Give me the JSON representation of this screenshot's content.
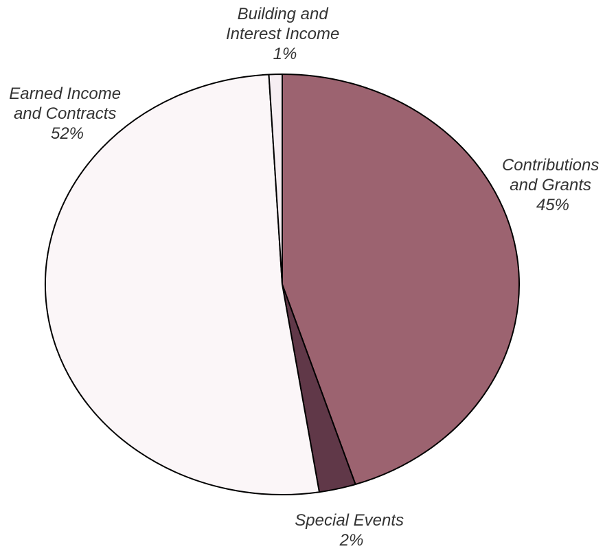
{
  "chart_data": {
    "type": "pie",
    "title": "",
    "start_angle": "12 o'clock",
    "direction": "clockwise",
    "slices": [
      {
        "label_lines": [
          "Contributions",
          "and Grants"
        ],
        "percent_label": "45%",
        "value": 45,
        "color": "#9c6370"
      },
      {
        "label_lines": [
          "Special Events"
        ],
        "percent_label": "2%",
        "value": 2.5,
        "color": "#603848"
      },
      {
        "label_lines": [
          "Earned Income",
          "and Contracts"
        ],
        "percent_label": "52%",
        "value": 51.6,
        "color": "#fbf6f8"
      },
      {
        "label_lines": [
          "Building and",
          "Interest Income"
        ],
        "percent_label": "1%",
        "value": 0.9,
        "color": "#f6eef2"
      }
    ]
  }
}
